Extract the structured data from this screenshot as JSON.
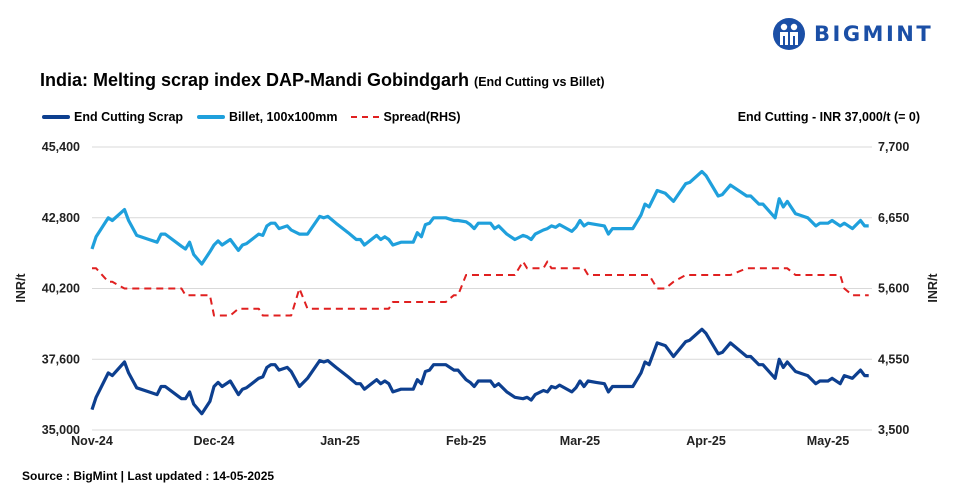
{
  "brand": {
    "name": "BIGMINT",
    "color": "#1b4fa6"
  },
  "title": "India: Melting scrap index DAP-Mandi Gobindgarh",
  "subtitle": "(End Cutting vs Billet)",
  "note": "End Cutting - INR 37,000/t (= 0)",
  "source": "Source : BigMint | Last updated : 14-05-2025",
  "chart_data": {
    "type": "line",
    "xlabel": "",
    "ylabel": "INR/t",
    "ylabel_right": "INR/t",
    "ylim": [
      35000,
      45400
    ],
    "ylim_right": [
      3500,
      7700
    ],
    "yticks": [
      "35,000",
      "37,600",
      "40,200",
      "42,800",
      "45,400"
    ],
    "yticks_right": [
      "3,500",
      "4,550",
      "5,600",
      "6,650",
      "7,700"
    ],
    "xticks": [
      "Nov-24",
      "Dec-24",
      "Jan-25",
      "Feb-25",
      "Mar-25",
      "Apr-25",
      "May-25"
    ],
    "grid": "horizontal",
    "legend_position": "top-left",
    "x": [
      "2024-11-01",
      "2024-11-02",
      "2024-11-05",
      "2024-11-06",
      "2024-11-09",
      "2024-11-10",
      "2024-11-12",
      "2024-11-15",
      "2024-11-17",
      "2024-11-18",
      "2024-11-19",
      "2024-11-23",
      "2024-11-24",
      "2024-11-25",
      "2024-11-26",
      "2024-11-28",
      "2024-11-30",
      "2024-12-01",
      "2024-12-02",
      "2024-12-03",
      "2024-12-05",
      "2024-12-07",
      "2024-12-08",
      "2024-12-09",
      "2024-12-12",
      "2024-12-13",
      "2024-12-14",
      "2024-12-15",
      "2024-12-16",
      "2024-12-17",
      "2024-12-19",
      "2024-12-20",
      "2024-12-22",
      "2024-12-24",
      "2024-12-27",
      "2024-12-28",
      "2024-12-29",
      "2024-12-31",
      "2025-01-03",
      "2025-01-05",
      "2025-01-06",
      "2025-01-07",
      "2025-01-10",
      "2025-01-11",
      "2025-01-12",
      "2025-01-13",
      "2025-01-14",
      "2025-01-16",
      "2025-01-19",
      "2025-01-20",
      "2025-01-21",
      "2025-01-22",
      "2025-01-23",
      "2025-01-24",
      "2025-01-27",
      "2025-01-29",
      "2025-01-30",
      "2025-02-01",
      "2025-02-02",
      "2025-02-03",
      "2025-02-04",
      "2025-02-07",
      "2025-02-08",
      "2025-02-09",
      "2025-02-11",
      "2025-02-13",
      "2025-02-15",
      "2025-02-16",
      "2025-02-17",
      "2025-02-18",
      "2025-02-20",
      "2025-02-21",
      "2025-02-22",
      "2025-02-23",
      "2025-02-24",
      "2025-02-27",
      "2025-02-28",
      "2025-03-01",
      "2025-03-02",
      "2025-03-03",
      "2025-03-05",
      "2025-03-07",
      "2025-03-08",
      "2025-03-09",
      "2025-03-14",
      "2025-03-16",
      "2025-03-17",
      "2025-03-18",
      "2025-03-20",
      "2025-03-22",
      "2025-03-24",
      "2025-03-27",
      "2025-03-28",
      "2025-03-31",
      "2025-04-01",
      "2025-04-04",
      "2025-04-05",
      "2025-04-07",
      "2025-04-11",
      "2025-04-12",
      "2025-04-14",
      "2025-04-15",
      "2025-04-18",
      "2025-04-19",
      "2025-04-20",
      "2025-04-21",
      "2025-04-23",
      "2025-04-24",
      "2025-04-26",
      "2025-04-28",
      "2025-04-29",
      "2025-05-01",
      "2025-05-02",
      "2025-05-04",
      "2025-05-05",
      "2025-05-07",
      "2025-05-09",
      "2025-05-10",
      "2025-05-11"
    ],
    "series": [
      {
        "name": "End Cutting Scrap",
        "axis": "left",
        "color": "#0d3f8f",
        "style": "solid",
        "values": [
          35750,
          36200,
          37100,
          37000,
          37500,
          37100,
          36550,
          36400,
          36300,
          36600,
          36600,
          36150,
          36150,
          36400,
          35950,
          35600,
          36050,
          36600,
          36750,
          36600,
          36800,
          36300,
          36500,
          36550,
          36900,
          36950,
          37300,
          37400,
          37400,
          37200,
          37300,
          37150,
          36600,
          36900,
          37550,
          37500,
          37550,
          37300,
          36950,
          36700,
          36700,
          36500,
          36850,
          36700,
          36800,
          36700,
          36400,
          36500,
          36500,
          36850,
          36700,
          37150,
          37200,
          37400,
          37400,
          37200,
          37200,
          36850,
          36750,
          36600,
          36800,
          36800,
          36600,
          36700,
          36400,
          36200,
          36150,
          36200,
          36100,
          36300,
          36450,
          36400,
          36600,
          36550,
          36650,
          36400,
          36550,
          36800,
          36600,
          36800,
          36750,
          36700,
          36400,
          36600,
          36600,
          37100,
          37500,
          37400,
          38200,
          38100,
          37700,
          38250,
          38300,
          38700,
          38550,
          37800,
          37850,
          38200,
          37700,
          37700,
          37400,
          37400,
          36900,
          37600,
          37300,
          37500,
          37150,
          37100,
          37000,
          36700,
          36800,
          36800,
          36900,
          36700,
          37000,
          36900,
          37200,
          37000,
          37000
        ]
      },
      {
        "name": "Billet, 100x100mm",
        "axis": "left",
        "color": "#1fa0dc",
        "style": "solid",
        "values": [
          41650,
          42100,
          42800,
          42700,
          43100,
          42700,
          42150,
          42000,
          41900,
          42200,
          42200,
          41750,
          41650,
          41900,
          41450,
          41100,
          41550,
          41800,
          41950,
          41800,
          42000,
          41600,
          41800,
          41850,
          42200,
          42150,
          42500,
          42600,
          42600,
          42400,
          42500,
          42350,
          42200,
          42200,
          42850,
          42800,
          42850,
          42600,
          42250,
          42000,
          42000,
          41800,
          42150,
          42000,
          42100,
          42000,
          41800,
          41900,
          41900,
          42250,
          42100,
          42550,
          42600,
          42800,
          42800,
          42700,
          42700,
          42650,
          42550,
          42400,
          42600,
          42600,
          42400,
          42500,
          42200,
          42000,
          42150,
          42100,
          42000,
          42200,
          42350,
          42400,
          42500,
          42450,
          42550,
          42300,
          42450,
          42700,
          42500,
          42600,
          42550,
          42500,
          42200,
          42400,
          42400,
          42900,
          43300,
          43200,
          43800,
          43700,
          43400,
          44050,
          44100,
          44500,
          44350,
          43600,
          43650,
          44000,
          43600,
          43600,
          43300,
          43300,
          42800,
          43500,
          43200,
          43400,
          42950,
          42900,
          42800,
          42500,
          42600,
          42600,
          42700,
          42500,
          42600,
          42400,
          42700,
          42500,
          42500
        ]
      },
      {
        "name": "Spread(RHS)",
        "axis": "right",
        "color": "#e02020",
        "style": "dashed",
        "values": [
          5900,
          5900,
          5700,
          5700,
          5600,
          5600,
          5600,
          5600,
          5600,
          5600,
          5600,
          5600,
          5500,
          5500,
          5500,
          5500,
          5500,
          5200,
          5200,
          5200,
          5200,
          5300,
          5300,
          5300,
          5300,
          5200,
          5200,
          5200,
          5200,
          5200,
          5200,
          5200,
          5600,
          5300,
          5300,
          5300,
          5300,
          5300,
          5300,
          5300,
          5300,
          5300,
          5300,
          5300,
          5300,
          5300,
          5400,
          5400,
          5400,
          5400,
          5400,
          5400,
          5400,
          5400,
          5400,
          5500,
          5500,
          5800,
          5800,
          5800,
          5800,
          5800,
          5800,
          5800,
          5800,
          5800,
          6000,
          5900,
          5900,
          5900,
          5900,
          6000,
          5900,
          5900,
          5900,
          5900,
          5900,
          5900,
          5900,
          5800,
          5800,
          5800,
          5800,
          5800,
          5800,
          5800,
          5800,
          5800,
          5600,
          5600,
          5700,
          5800,
          5800,
          5800,
          5800,
          5800,
          5800,
          5800,
          5900,
          5900,
          5900,
          5900,
          5900,
          5900,
          5900,
          5900,
          5800,
          5800,
          5800,
          5800,
          5800,
          5800,
          5800,
          5800,
          5600,
          5500,
          5500,
          5500,
          5500
        ]
      }
    ]
  }
}
